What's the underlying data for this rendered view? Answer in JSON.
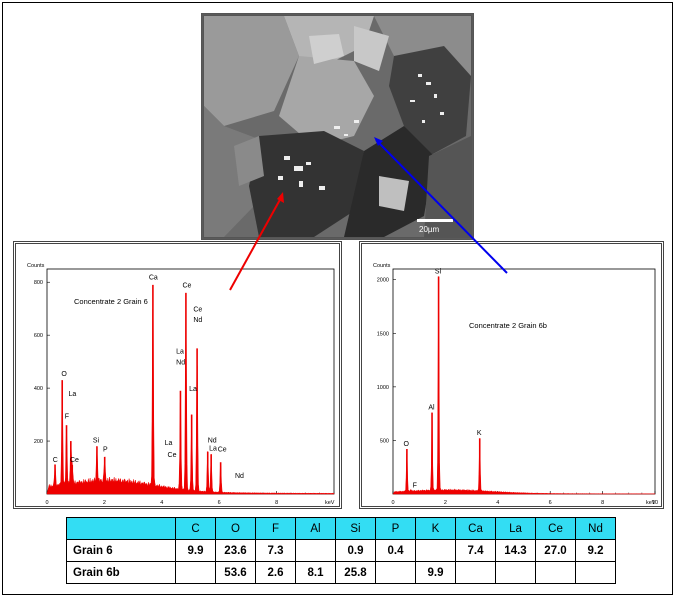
{
  "sem_image": {
    "scale_bar_label": "20µm"
  },
  "chart_data": [
    {
      "type": "line",
      "title": "Concentrate 2 Grain 6",
      "xlabel": "keV",
      "ylabel": "Counts",
      "xlim": [
        0,
        10
      ],
      "ylim": [
        0,
        850
      ],
      "xticks": [
        0,
        2,
        4,
        6,
        8
      ],
      "yticks": [
        200,
        400,
        600,
        800
      ],
      "peaks": [
        {
          "label": "C",
          "x": 0.28,
          "y": 110
        },
        {
          "label": "O",
          "x": 0.53,
          "y": 430
        },
        {
          "label": "F",
          "x": 0.68,
          "y": 260
        },
        {
          "label": "La",
          "x": 0.83,
          "y": 200
        },
        {
          "label": "Ce",
          "x": 0.88,
          "y": 110
        },
        {
          "label": "Si",
          "x": 1.74,
          "y": 180
        },
        {
          "label": "P",
          "x": 2.01,
          "y": 140
        },
        {
          "label": "Ca",
          "x": 3.69,
          "y": 790
        },
        {
          "label": "La",
          "x": 4.65,
          "y": 390
        },
        {
          "label": "Ce",
          "x": 4.84,
          "y": 760
        },
        {
          "label": "La",
          "x": 5.04,
          "y": 300
        },
        {
          "label": "Nd",
          "x": 5.23,
          "y": 550
        },
        {
          "label": "La",
          "x": 5.6,
          "y": 160
        },
        {
          "label": "Nd",
          "x": 5.72,
          "y": 150
        },
        {
          "label": "Ce",
          "x": 6.05,
          "y": 120
        }
      ],
      "peak_labels": [
        {
          "text": "C",
          "x": 0.2,
          "y": 120
        },
        {
          "text": "O",
          "x": 0.5,
          "y": 445
        },
        {
          "text": "La",
          "x": 0.75,
          "y": 370
        },
        {
          "text": "F",
          "x": 0.62,
          "y": 285
        },
        {
          "text": "Ce",
          "x": 0.8,
          "y": 120
        },
        {
          "text": "Si",
          "x": 1.6,
          "y": 195
        },
        {
          "text": "P",
          "x": 1.95,
          "y": 160
        },
        {
          "text": "Ca",
          "x": 3.55,
          "y": 810
        },
        {
          "text": "Ce",
          "x": 4.72,
          "y": 780
        },
        {
          "text": "Ce",
          "x": 5.1,
          "y": 690
        },
        {
          "text": "Nd",
          "x": 5.1,
          "y": 650
        },
        {
          "text": "La",
          "x": 4.5,
          "y": 530
        },
        {
          "text": "Nd",
          "x": 4.5,
          "y": 490
        },
        {
          "text": "La",
          "x": 4.95,
          "y": 390
        },
        {
          "text": "La",
          "x": 4.1,
          "y": 185
        },
        {
          "text": "Ce",
          "x": 4.2,
          "y": 140
        },
        {
          "text": "Nd",
          "x": 5.6,
          "y": 195
        },
        {
          "text": "La",
          "x": 5.65,
          "y": 165
        },
        {
          "text": "Ce",
          "x": 5.95,
          "y": 160
        },
        {
          "text": "Nd",
          "x": 6.55,
          "y": 60
        }
      ],
      "color": "#ee0000"
    },
    {
      "type": "line",
      "title": "Concentrate 2 Grain 6b",
      "xlabel": "keV",
      "ylabel": "Counts",
      "xlim": [
        0,
        10
      ],
      "ylim": [
        0,
        2100
      ],
      "xticks": [
        0,
        2,
        4,
        6,
        8,
        10
      ],
      "yticks": [
        500,
        1000,
        1500,
        2000
      ],
      "peaks": [
        {
          "label": "O",
          "x": 0.53,
          "y": 420
        },
        {
          "label": "F",
          "x": 0.68,
          "y": 40
        },
        {
          "label": "Al",
          "x": 1.49,
          "y": 760
        },
        {
          "label": "Si",
          "x": 1.74,
          "y": 2030
        },
        {
          "label": "K",
          "x": 3.31,
          "y": 520
        }
      ],
      "peak_labels": [
        {
          "text": "Si",
          "x": 1.6,
          "y": 2060
        },
        {
          "text": "Al",
          "x": 1.35,
          "y": 790
        },
        {
          "text": "K",
          "x": 3.2,
          "y": 550
        },
        {
          "text": "O",
          "x": 0.4,
          "y": 450
        },
        {
          "text": "F",
          "x": 0.75,
          "y": 60
        }
      ],
      "color": "#ee0000"
    },
    {
      "type": "table",
      "columns": [
        "",
        "C",
        "O",
        "F",
        "Al",
        "Si",
        "P",
        "K",
        "Ca",
        "La",
        "Ce",
        "Nd"
      ],
      "rows": [
        [
          "Grain 6",
          "9.9",
          "23.6",
          "7.3",
          "",
          "0.9",
          "0.4",
          "",
          "7.4",
          "14.3",
          "27.0",
          "9.2"
        ],
        [
          "Grain 6b",
          "",
          "53.6",
          "2.6",
          "8.1",
          "25.8",
          "",
          "9.9",
          "",
          "",
          "",
          ""
        ]
      ]
    }
  ]
}
